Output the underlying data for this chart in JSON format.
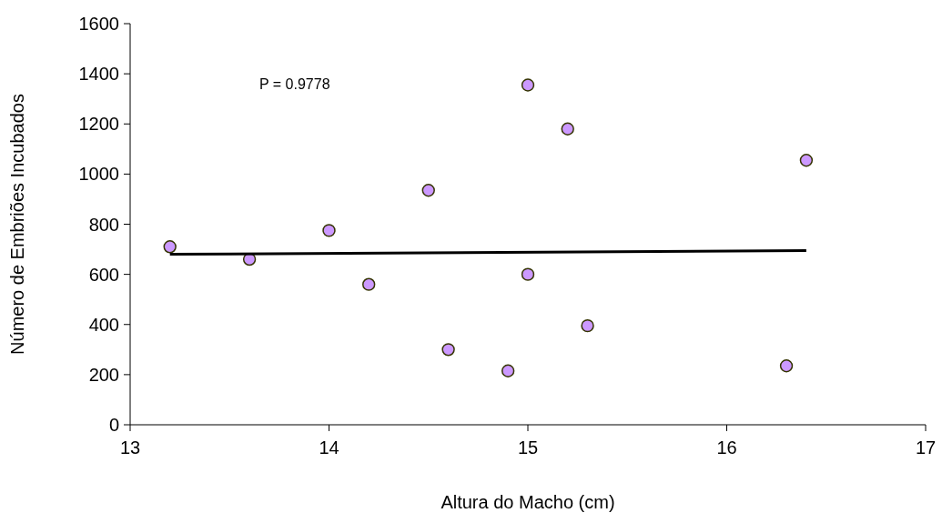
{
  "chart_data": {
    "type": "scatter",
    "xlabel": "Altura do Macho (cm)",
    "ylabel": "Número de Embriões Incubados",
    "annotations": [
      "P = 0.9778"
    ],
    "x": [
      13.2,
      13.6,
      14.0,
      14.2,
      14.5,
      14.6,
      14.9,
      15.0,
      15.0,
      15.2,
      15.3,
      16.3,
      16.4
    ],
    "series": [
      {
        "color": "#cc99ff",
        "marker": "circle",
        "values": [
          710,
          660,
          775,
          560,
          935,
          300,
          215,
          1355,
          600,
          1180,
          395,
          235,
          1055
        ]
      },
      {
        "type": "line",
        "color": "#000000",
        "x": [
          13.2,
          16.4
        ],
        "values": [
          680,
          695
        ]
      }
    ],
    "xlim": [
      13,
      17
    ],
    "xticks": [
      13,
      14,
      15,
      16,
      17
    ],
    "ylim": [
      0,
      1600
    ],
    "yticks": [
      0,
      200,
      400,
      600,
      800,
      1000,
      1200,
      1400,
      1600
    ],
    "grid": false
  }
}
